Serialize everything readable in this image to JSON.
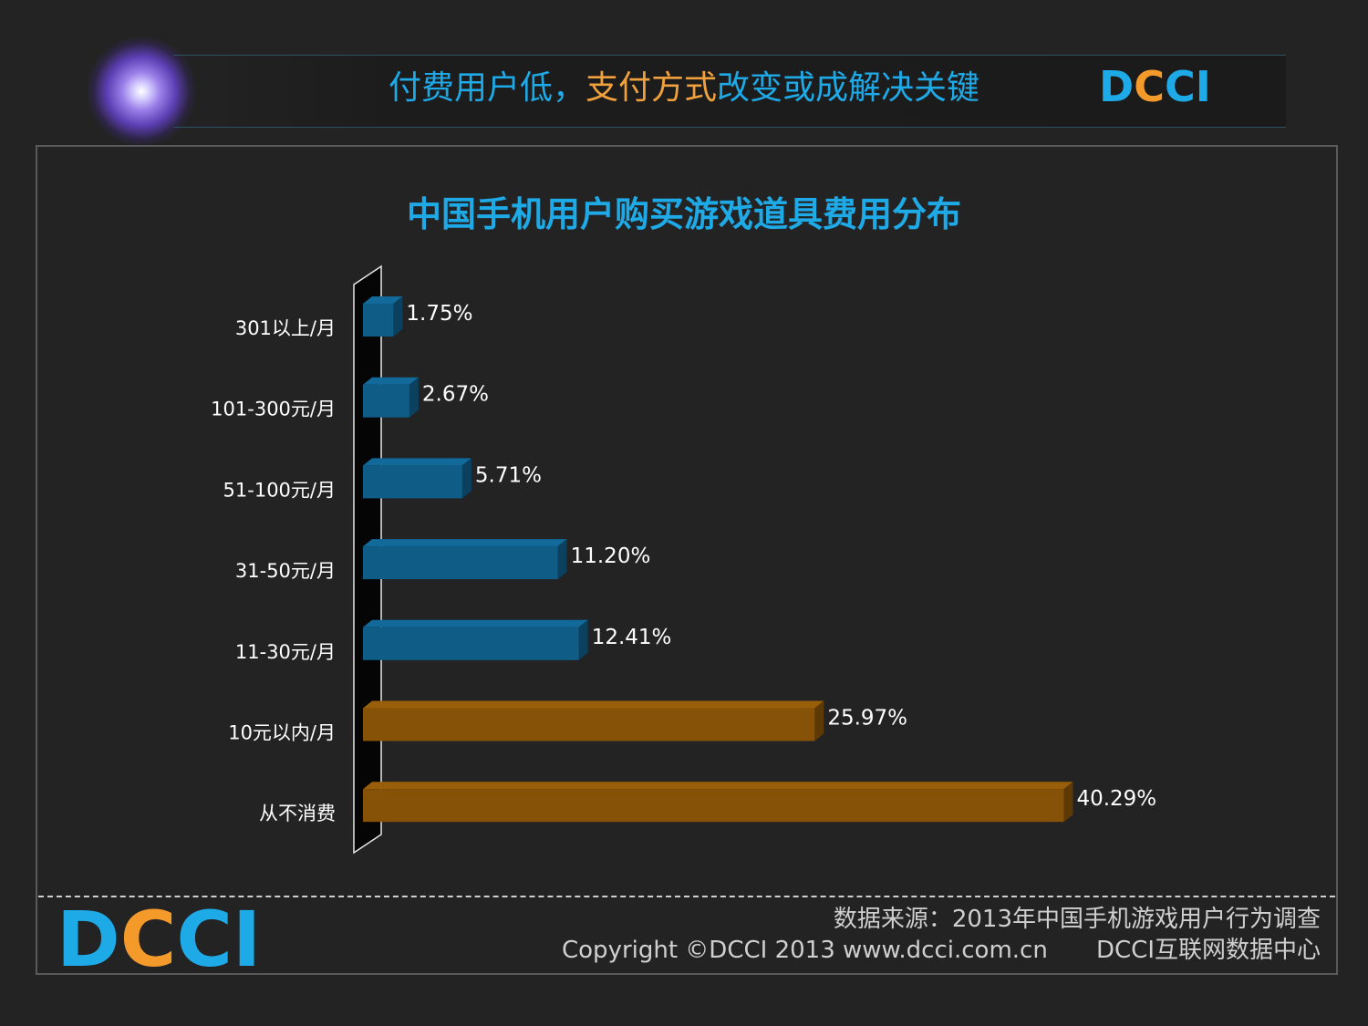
{
  "header": {
    "title_part1": "付费用户低，",
    "title_part2": "支付方式",
    "title_part3": "改变或成解决关键"
  },
  "logo": {
    "letters": [
      "D",
      "C",
      "C",
      "I"
    ],
    "colors": [
      "#1ea9e7",
      "#f39a2b",
      "#1ea9e7",
      "#1ea9e7"
    ]
  },
  "footer": {
    "source": "数据来源：2013年中国手机游戏用户行为调查",
    "copyright": "Copyright ©DCCI 2013 www.dcci.com.cn",
    "org": "DCCI互联网数据中心"
  },
  "colors": {
    "accent_blue": "#1ea9e7",
    "accent_orange": "#f39a2b",
    "bar_blue": "#0f5c86",
    "bar_orange": "#855208"
  },
  "chart_data": {
    "type": "bar",
    "orientation": "horizontal",
    "title": "中国手机用户购买游戏道具费用分布",
    "categories": [
      "301以上/月",
      "101-300元/月",
      "51-100元/月",
      "31-50元/月",
      "11-30元/月",
      "10元以内/月",
      "从不消费"
    ],
    "values": [
      1.75,
      2.67,
      5.71,
      11.2,
      12.41,
      25.97,
      40.29
    ],
    "data_labels": [
      "1.75%",
      "2.67%",
      "5.71%",
      "11.20%",
      "12.41%",
      "25.97%",
      "40.29%"
    ],
    "highlight": [
      false,
      false,
      false,
      false,
      false,
      true,
      true
    ],
    "xlim": [
      0,
      41
    ],
    "grid": false,
    "legend": "none"
  }
}
